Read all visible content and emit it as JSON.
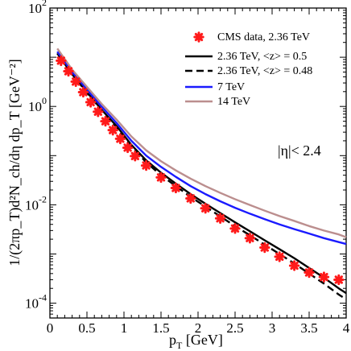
{
  "chart_data": {
    "type": "line",
    "xlabel_main": "p",
    "xlabel_sub": "T",
    "xlabel_rest": " [GeV]",
    "ylabel_text": "1/(2πp_T)d²N_ch/dη dp_T [GeV⁻²]",
    "xlim": [
      0,
      4
    ],
    "ylim": [
      5e-05,
      100
    ],
    "yscale": "log",
    "x_ticks": [
      0,
      0.5,
      1,
      1.5,
      2,
      2.5,
      3,
      3.5,
      4
    ],
    "x_tick_labels": [
      "0",
      "0.5",
      "1",
      "1.5",
      "2",
      "2.5",
      "3",
      "3.5",
      "4"
    ],
    "y_ticks": [
      {
        "value": 100,
        "base": "10",
        "exp": "2"
      },
      {
        "value": 1,
        "base": "10",
        "exp": "0"
      },
      {
        "value": 0.01,
        "base": "10",
        "exp": "-2"
      },
      {
        "value": 0.0001,
        "base": "10",
        "exp": "-4"
      }
    ],
    "annotation": "|η|< 2.4",
    "legend_position": "top-right",
    "series": [
      {
        "name": "CMS data, 2.36 TeV",
        "style": "markers",
        "color": "#ff1a1a",
        "x": [
          0.15,
          0.25,
          0.35,
          0.45,
          0.55,
          0.65,
          0.75,
          0.85,
          0.95,
          1.05,
          1.15,
          1.3,
          1.5,
          1.7,
          1.9,
          2.1,
          2.3,
          2.5,
          2.7,
          2.9,
          3.1,
          3.3,
          3.5,
          3.7,
          3.9
        ],
        "y": [
          8.5,
          5.2,
          3.2,
          1.95,
          1.22,
          0.78,
          0.5,
          0.33,
          0.22,
          0.145,
          0.098,
          0.063,
          0.036,
          0.022,
          0.0135,
          0.0085,
          0.0053,
          0.0033,
          0.0021,
          0.00135,
          0.00088,
          0.00058,
          0.00042,
          0.00034,
          0.0003
        ]
      },
      {
        "name": "2.36 TeV, <z> = 0.5",
        "style": "solid",
        "color": "#000000",
        "x": [
          0.1,
          0.3,
          0.5,
          0.7,
          0.9,
          1.1,
          1.3,
          1.5,
          1.7,
          1.9,
          2.1,
          2.3,
          2.5,
          2.7,
          2.9,
          3.1,
          3.3,
          3.5,
          3.7,
          3.9,
          4.0
        ],
        "y": [
          12,
          4.6,
          1.95,
          0.85,
          0.4,
          0.165,
          0.08,
          0.045,
          0.027,
          0.0165,
          0.0105,
          0.0068,
          0.0044,
          0.0029,
          0.0019,
          0.00125,
          0.00082,
          0.00052,
          0.00033,
          0.0002,
          0.00016
        ]
      },
      {
        "name": "2.36 TeV, <z> = 0.48",
        "style": "dashed",
        "color": "#000000",
        "x": [
          0.1,
          0.3,
          0.5,
          0.7,
          0.9,
          1.1,
          1.3,
          1.5,
          1.7,
          1.9,
          2.1,
          2.3,
          2.5,
          2.7,
          2.9,
          3.1,
          3.3,
          3.5,
          3.7,
          3.9,
          4.0
        ],
        "y": [
          12,
          4.5,
          1.9,
          0.82,
          0.38,
          0.155,
          0.073,
          0.04,
          0.024,
          0.0145,
          0.0092,
          0.0058,
          0.0037,
          0.0024,
          0.00155,
          0.001,
          0.00064,
          0.0004,
          0.00025,
          0.00015,
          0.00012
        ]
      },
      {
        "name": "7 TeV",
        "style": "solid",
        "color": "#1a1aff",
        "x": [
          0.1,
          0.3,
          0.5,
          0.7,
          0.9,
          1.1,
          1.3,
          1.5,
          1.7,
          1.9,
          2.1,
          2.3,
          2.5,
          2.7,
          2.9,
          3.1,
          3.3,
          3.5,
          3.7,
          3.9,
          4.0
        ],
        "y": [
          13,
          5,
          2.2,
          0.98,
          0.46,
          0.2,
          0.1,
          0.059,
          0.037,
          0.024,
          0.0165,
          0.0118,
          0.0087,
          0.0066,
          0.0051,
          0.004,
          0.0032,
          0.0026,
          0.0021,
          0.00175,
          0.0016
        ]
      },
      {
        "name": "14 TeV",
        "style": "solid",
        "color": "#bb8e8e",
        "x": [
          0.1,
          0.3,
          0.5,
          0.7,
          0.9,
          1.1,
          1.3,
          1.5,
          1.7,
          1.9,
          2.1,
          2.3,
          2.5,
          2.7,
          2.9,
          3.1,
          3.3,
          3.5,
          3.7,
          3.9,
          4.0
        ],
        "y": [
          15,
          5.6,
          2.5,
          1.12,
          0.54,
          0.245,
          0.128,
          0.077,
          0.05,
          0.034,
          0.024,
          0.0175,
          0.013,
          0.0099,
          0.0076,
          0.0059,
          0.0047,
          0.0037,
          0.003,
          0.0025,
          0.0022
        ]
      }
    ]
  }
}
